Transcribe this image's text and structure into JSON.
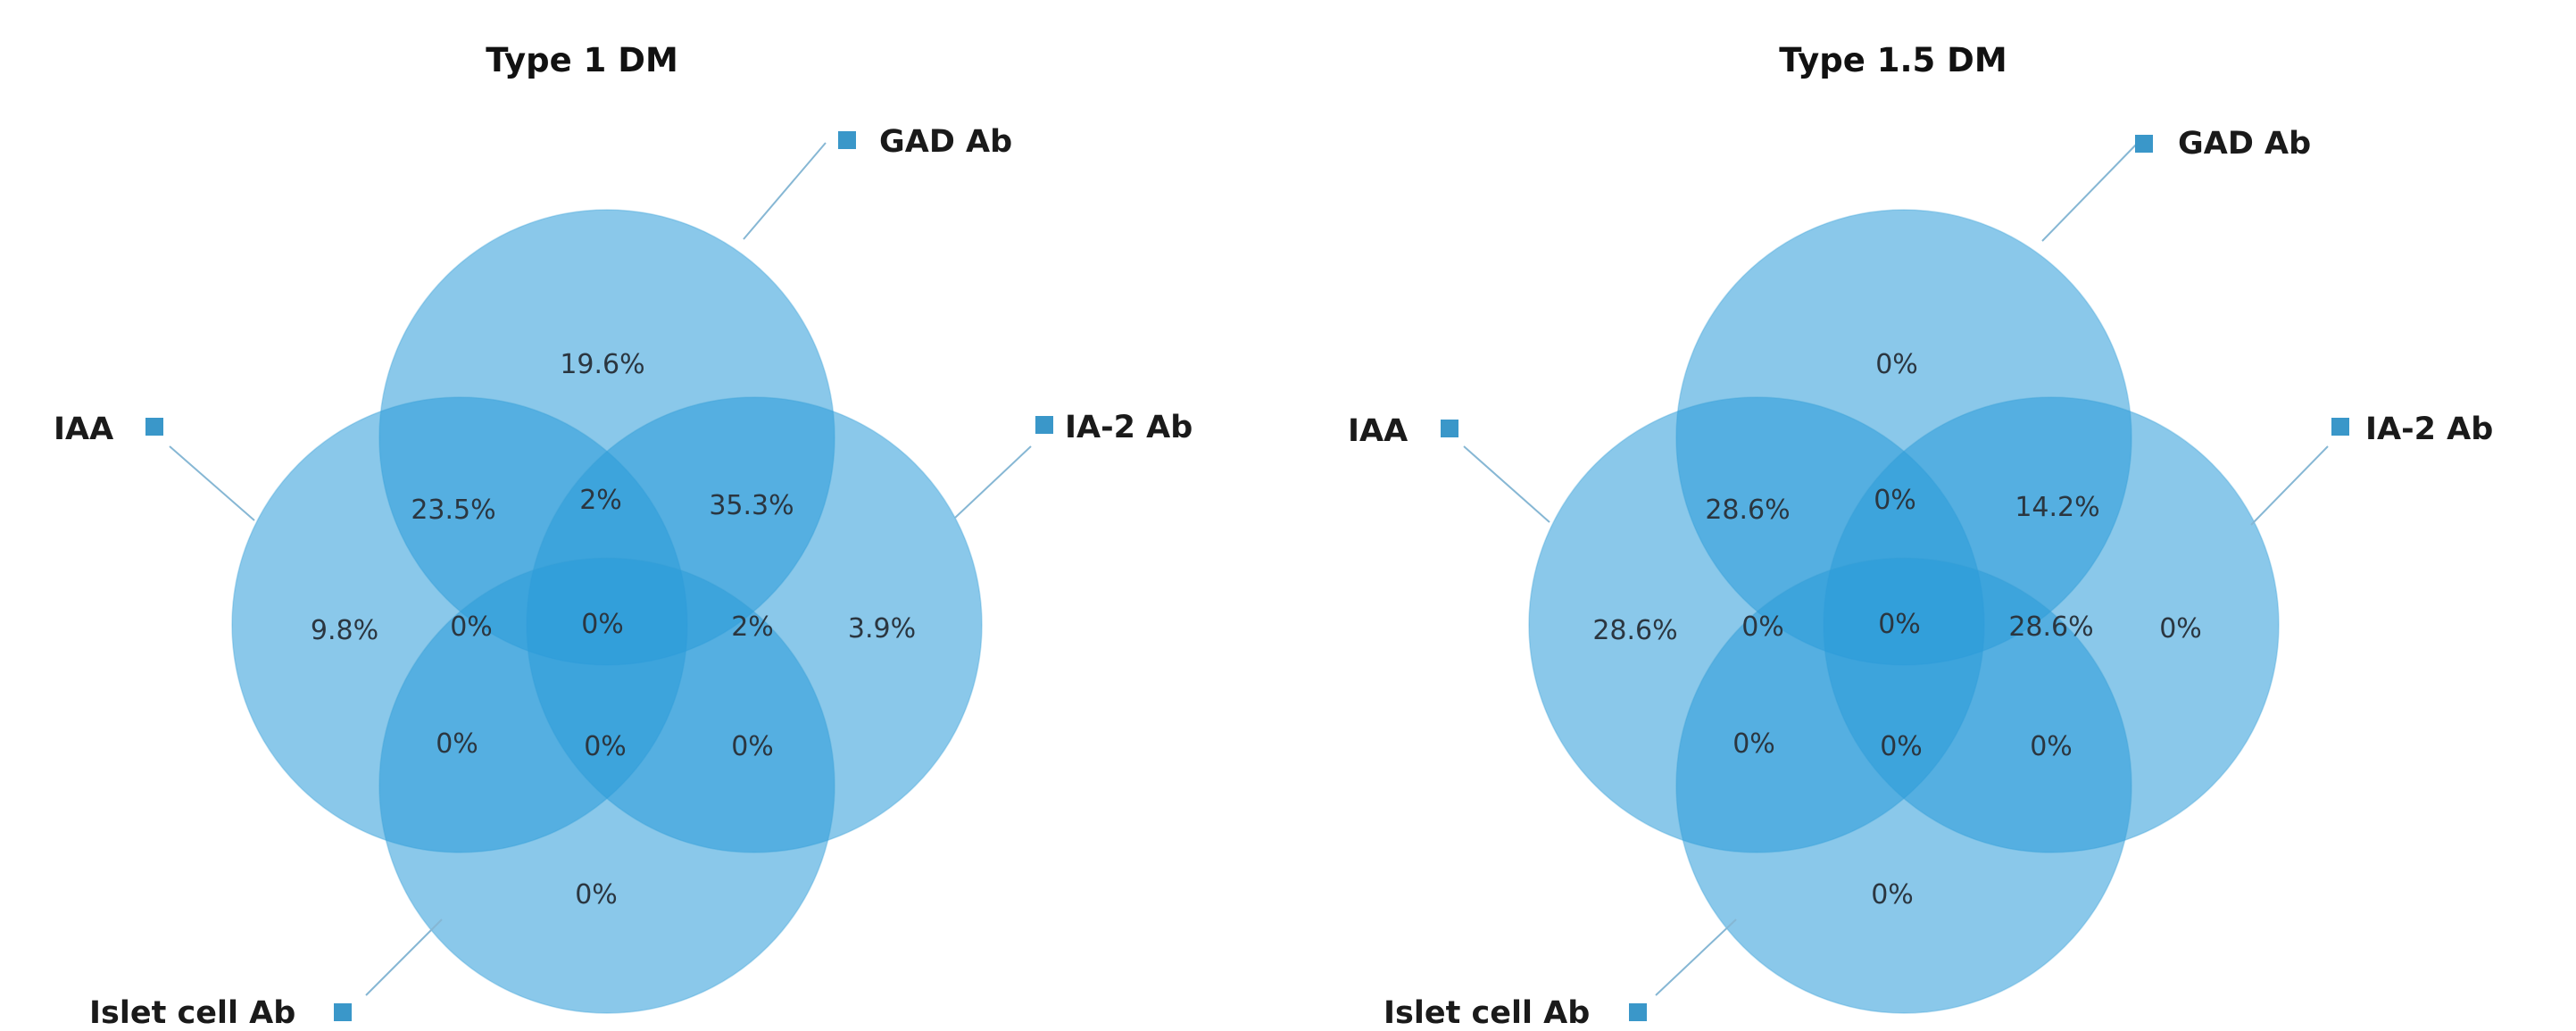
{
  "diagrams": [
    {
      "title": "Type 1 DM",
      "sets": {
        "top": "GAD Ab",
        "left": "IAA",
        "right": "IA-2 Ab",
        "bottom": "Islet cell Ab"
      },
      "regions": {
        "top_only": "19.6%",
        "top_left": "23.5%",
        "top_center": "2%",
        "top_right": "35.3%",
        "left_only": "9.8%",
        "left_center": "0%",
        "center": "0%",
        "right_center": "2%",
        "right_only": "3.9%",
        "bottom_left": "0%",
        "bottom_center": "0%",
        "bottom_right": "0%",
        "bottom_only": "0%"
      }
    },
    {
      "title": "Type 1.5 DM",
      "sets": {
        "top": "GAD Ab",
        "left": "IAA",
        "right": "IA-2 Ab",
        "bottom": "Islet cell Ab"
      },
      "regions": {
        "top_only": "0%",
        "top_left": "28.6%",
        "top_center": "0%",
        "top_right": "14.2%",
        "left_only": "28.6%",
        "left_center": "0%",
        "center": "0%",
        "right_center": "28.6%",
        "right_only": "0%",
        "bottom_left": "0%",
        "bottom_center": "0%",
        "bottom_right": "0%",
        "bottom_only": "0%"
      }
    }
  ],
  "colors": {
    "circle_fill": "#2a9ad9",
    "legend_marker": "#3a97c9",
    "text": "#2b3640"
  }
}
